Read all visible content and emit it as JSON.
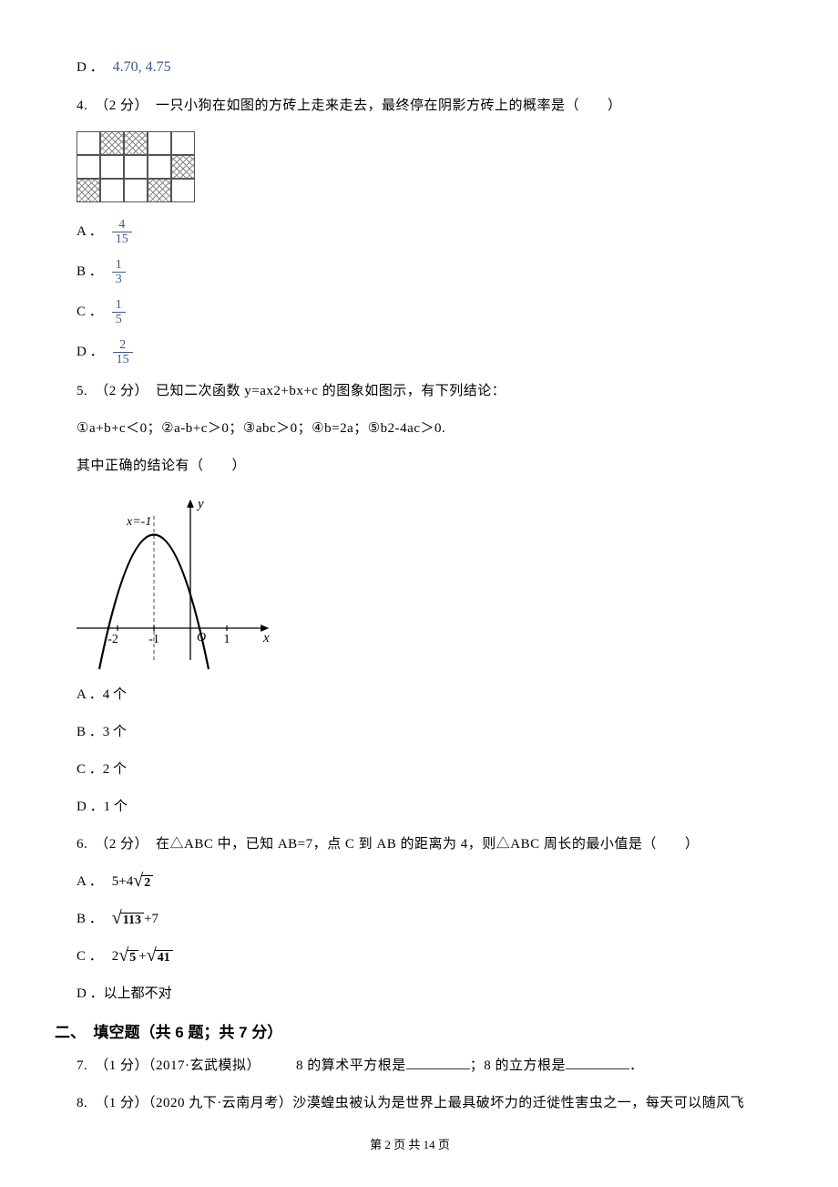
{
  "q3": {
    "option_d_label": "D ．",
    "option_d_value": "4.70, 4.75"
  },
  "q4": {
    "prompt": "4.　（2 分）　一只小狗在如图的方砖上走来走去，最终停在阴影方砖上的概率是（　　）",
    "a_label": "A ．",
    "a_num": "4",
    "a_den": "15",
    "b_label": "B ．",
    "b_num": "1",
    "b_den": "3",
    "c_label": "C ．",
    "c_num": "1",
    "c_den": "5",
    "d_label": "D ．",
    "d_num": "2",
    "d_den": "15",
    "grid": {
      "rows": 3,
      "cols": 5,
      "shaded": [
        [
          0,
          1
        ],
        [
          0,
          2
        ],
        [
          1,
          4
        ],
        [
          2,
          0
        ],
        [
          2,
          3
        ]
      ]
    }
  },
  "q5": {
    "prompt": "5.　（2 分）　已知二次函数 y=ax2+bx+c 的图象如图示，有下列结论：",
    "line2": "①a+b+c＜0；②a-b+c＞0；③abc＞0；④b=2a；⑤b2-4ac＞0.",
    "line3": "其中正确的结论有（　　）",
    "a": "A ．4 个",
    "b": "B ．3 个",
    "c": "C ．2 个",
    "d": "D ．1 个",
    "fig": {
      "x_label": "x",
      "y_label": "y",
      "axis_label": "x=-1",
      "ticks": {
        "xn2": "-2",
        "xn1": "-1",
        "o": "O",
        "x1": "1"
      }
    }
  },
  "q6": {
    "prompt": "6.　（2 分）　在△ABC 中，已知 AB=7，点 C 到 AB 的距离为 4，则△ABC 周长的最小值是（　　）",
    "a_prefix": "A ．",
    "a_text1": "5+4",
    "a_rad": "2",
    "b_prefix": "B ．",
    "b_rad": "113",
    "b_text2": "+7",
    "c_prefix": "C ．",
    "c_text1": "2",
    "c_rad1": "5",
    "c_text2": "+",
    "c_rad2": "41",
    "d": "D ．以上都不对"
  },
  "section2": {
    "title": "二、　填空题（共 6 题；共 7 分）",
    "q7": {
      "prefix": "7.　（1 分）（2017·玄武模拟）　　　8 的算术平方根是",
      "mid": "；8 的立方根是",
      "suffix": "．"
    },
    "q8": {
      "text": "8.　（1 分）（2020 九下·云南月考）沙漠蝗虫被认为是世界上最具破坏力的迁徙性害虫之一，每天可以随风飞"
    }
  },
  "footer": "第 2 页 共 14 页"
}
